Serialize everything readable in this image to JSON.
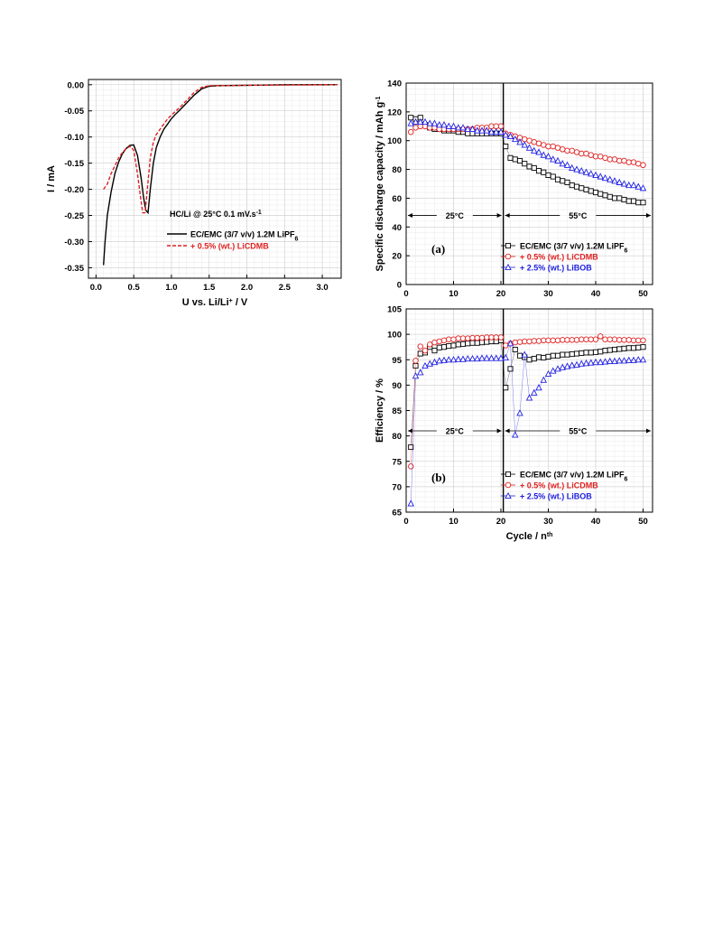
{
  "chart_data": [
    {
      "type": "line",
      "xlabel": "U vs. Li/Li",
      "xlabel_sup": "+",
      "xlabel_suffix": " / V",
      "ylabel": "I / mA",
      "xlim": [
        -0.1,
        3.25
      ],
      "ylim": [
        -0.37,
        0.01
      ],
      "xticks": [
        "0.0",
        "0.5",
        "1.0",
        "1.5",
        "2.0",
        "2.5",
        "3.0"
      ],
      "xtick_values": [
        0,
        0.5,
        1.0,
        1.5,
        2.0,
        2.5,
        3.0
      ],
      "yticks": [
        "0.00",
        "-0.05",
        "-0.10",
        "-0.15",
        "-0.20",
        "-0.25",
        "-0.30",
        "-0.35"
      ],
      "ytick_values": [
        0,
        -0.05,
        -0.1,
        -0.15,
        -0.2,
        -0.25,
        -0.3,
        -0.35
      ],
      "grid": true,
      "annotation": "HC/Li @ 25°C 0.1 mV.s",
      "annotation_sup": "-1",
      "legend_placement": "center-left",
      "series": [
        {
          "name": "EC/EMC (3/7 v/v) 1.2M LiPF",
          "name_sub": "6",
          "color": "#000000",
          "dash": "",
          "x": [
            0.1,
            0.12,
            0.15,
            0.2,
            0.25,
            0.3,
            0.35,
            0.4,
            0.45,
            0.5,
            0.55,
            0.6,
            0.63,
            0.66,
            0.69,
            0.72,
            0.76,
            0.8,
            0.85,
            0.9,
            0.95,
            1.0,
            1.05,
            1.1,
            1.2,
            1.3,
            1.4,
            1.5,
            1.6,
            2.0,
            2.5,
            3.2
          ],
          "y": [
            -0.345,
            -0.3,
            -0.25,
            -0.205,
            -0.17,
            -0.148,
            -0.132,
            -0.122,
            -0.116,
            -0.115,
            -0.135,
            -0.18,
            -0.215,
            -0.24,
            -0.245,
            -0.2,
            -0.15,
            -0.12,
            -0.1,
            -0.085,
            -0.075,
            -0.065,
            -0.057,
            -0.05,
            -0.035,
            -0.02,
            -0.008,
            -0.003,
            -0.002,
            -0.001,
            0,
            0
          ]
        },
        {
          "name": "+ 0.5% (wt.) LiCDMB",
          "color": "#e02020",
          "dash": "4,2",
          "x": [
            0.1,
            0.15,
            0.2,
            0.25,
            0.3,
            0.35,
            0.4,
            0.45,
            0.5,
            0.55,
            0.6,
            0.62,
            0.65,
            0.68,
            0.72,
            0.76,
            0.8,
            0.85,
            0.9,
            0.95,
            1.0,
            1.1,
            1.2,
            1.3,
            1.4,
            1.5,
            2.0,
            3.2
          ],
          "y": [
            -0.2,
            -0.19,
            -0.17,
            -0.155,
            -0.14,
            -0.13,
            -0.122,
            -0.118,
            -0.125,
            -0.17,
            -0.225,
            -0.245,
            -0.245,
            -0.2,
            -0.14,
            -0.11,
            -0.095,
            -0.085,
            -0.075,
            -0.065,
            -0.058,
            -0.045,
            -0.03,
            -0.015,
            -0.005,
            -0.002,
            -0.001,
            0
          ]
        }
      ]
    },
    {
      "type": "scatter",
      "panel": "(a)",
      "xlabel": "",
      "ylabel": "Specific discharge capacity / mAh g",
      "ylabel_sup": "-1",
      "xlim": [
        0,
        52
      ],
      "ylim": [
        0,
        140
      ],
      "xticks": [
        "0",
        "10",
        "20",
        "30",
        "40",
        "50"
      ],
      "xtick_values": [
        0,
        10,
        20,
        30,
        40,
        50
      ],
      "yticks": [
        "0",
        "20",
        "40",
        "60",
        "80",
        "100",
        "120",
        "140"
      ],
      "ytick_values": [
        0,
        20,
        40,
        60,
        80,
        100,
        120,
        140
      ],
      "grid": true,
      "divider_x": 20.5,
      "regions": [
        {
          "label": "25°C",
          "x_range": [
            0,
            20.5
          ],
          "y": 48
        },
        {
          "label": "55°C",
          "x_range": [
            20.5,
            52
          ],
          "y": 48
        }
      ],
      "legend_placement": "bottom-right",
      "series": [
        {
          "name": "EC/EMC (3/7 v/v) 1.2M LiPF",
          "name_sub": "6",
          "color": "#000000",
          "marker": "square",
          "x": [
            1,
            2,
            3,
            4,
            5,
            6,
            7,
            8,
            9,
            10,
            11,
            12,
            13,
            14,
            15,
            16,
            17,
            18,
            19,
            20,
            21,
            22,
            23,
            24,
            25,
            26,
            27,
            28,
            29,
            30,
            31,
            32,
            33,
            34,
            35,
            36,
            37,
            38,
            39,
            40,
            41,
            42,
            43,
            44,
            45,
            46,
            47,
            48,
            49,
            50
          ],
          "y": [
            116,
            115,
            116,
            111,
            109,
            108,
            108,
            107,
            107,
            107,
            106,
            106,
            105,
            105,
            105,
            105,
            105,
            105,
            105,
            105,
            96,
            88,
            87,
            86,
            84,
            82,
            81,
            79,
            78,
            76,
            75,
            73,
            72,
            71,
            69,
            68,
            67,
            66,
            65,
            64,
            63,
            62,
            61,
            60,
            60,
            59,
            58,
            58,
            57,
            57
          ]
        },
        {
          "name": "+ 0.5% (wt.) LiCDMB",
          "color": "#e02020",
          "marker": "circle",
          "x": [
            1,
            2,
            3,
            4,
            5,
            6,
            7,
            8,
            9,
            10,
            11,
            12,
            13,
            14,
            15,
            16,
            17,
            18,
            19,
            20,
            21,
            22,
            23,
            24,
            25,
            26,
            27,
            28,
            29,
            30,
            31,
            32,
            33,
            34,
            35,
            36,
            37,
            38,
            39,
            40,
            41,
            42,
            43,
            44,
            45,
            46,
            47,
            48,
            49,
            50
          ],
          "y": [
            106,
            109,
            110,
            110,
            109,
            109,
            108,
            108,
            108,
            108,
            108,
            108,
            108,
            108,
            109,
            109,
            109,
            110,
            110,
            110,
            105,
            104,
            103,
            102,
            101,
            100,
            99,
            98,
            97,
            96,
            96,
            95,
            94,
            93,
            93,
            92,
            91,
            91,
            90,
            89,
            89,
            88,
            87,
            87,
            86,
            86,
            85,
            85,
            84,
            83
          ]
        },
        {
          "name": "+ 2.5% (wt.) LiBOB",
          "color": "#2020e0",
          "marker": "triangle",
          "x": [
            1,
            2,
            3,
            4,
            5,
            6,
            7,
            8,
            9,
            10,
            11,
            12,
            13,
            14,
            15,
            16,
            17,
            18,
            19,
            20,
            21,
            22,
            23,
            24,
            25,
            26,
            27,
            28,
            29,
            30,
            31,
            32,
            33,
            34,
            35,
            36,
            37,
            38,
            39,
            40,
            41,
            42,
            43,
            44,
            45,
            46,
            47,
            48,
            49,
            50
          ],
          "y": [
            112,
            113,
            113,
            113,
            112,
            112,
            111,
            111,
            110,
            110,
            109,
            109,
            108,
            108,
            107,
            107,
            107,
            106,
            106,
            106,
            104,
            103,
            101,
            99,
            97,
            95,
            93,
            92,
            90,
            89,
            87,
            86,
            84,
            83,
            81,
            80,
            79,
            78,
            77,
            76,
            75,
            74,
            73,
            72,
            71,
            70,
            69,
            69,
            68,
            67
          ]
        }
      ]
    },
    {
      "type": "scatter",
      "panel": "(b)",
      "xlabel": "Cycle / n",
      "xlabel_sup": "th",
      "ylabel": "Efficiency / %",
      "xlim": [
        0,
        52
      ],
      "ylim": [
        65,
        105
      ],
      "xticks": [
        "0",
        "10",
        "20",
        "30",
        "40",
        "50"
      ],
      "xtick_values": [
        0,
        10,
        20,
        30,
        40,
        50
      ],
      "yticks": [
        "65",
        "70",
        "75",
        "80",
        "85",
        "90",
        "95",
        "100",
        "105"
      ],
      "ytick_values": [
        65,
        70,
        75,
        80,
        85,
        90,
        95,
        100,
        105
      ],
      "grid": true,
      "divider_x": 20.5,
      "regions": [
        {
          "label": "25°C",
          "x_range": [
            0,
            20.5
          ],
          "y": 81
        },
        {
          "label": "55°C",
          "x_range": [
            20.5,
            52
          ],
          "y": 81
        }
      ],
      "legend_placement": "bottom-right",
      "series": [
        {
          "name": "EC/EMC (3/7 v/v) 1.2M LiPF",
          "name_sub": "6",
          "color": "#000000",
          "marker": "square",
          "x": [
            1,
            2,
            3,
            4,
            5,
            6,
            7,
            8,
            9,
            10,
            11,
            12,
            13,
            14,
            15,
            16,
            17,
            18,
            19,
            20,
            21,
            22,
            23,
            24,
            25,
            26,
            27,
            28,
            29,
            30,
            31,
            32,
            33,
            34,
            35,
            36,
            37,
            38,
            39,
            40,
            41,
            42,
            43,
            44,
            45,
            46,
            47,
            48,
            49,
            50
          ],
          "y": [
            77.8,
            93.8,
            96.2,
            96.4,
            97.5,
            96.8,
            97.4,
            97.5,
            97.7,
            97.8,
            98,
            98.1,
            98.2,
            98.3,
            98.3,
            98.4,
            98.5,
            98.6,
            98.6,
            98.8,
            89.5,
            93.2,
            97,
            95.8,
            95.5,
            95,
            95.2,
            95.5,
            95.4,
            95.6,
            95.8,
            95.8,
            96,
            96,
            96.1,
            96.2,
            96.3,
            96.4,
            96.4,
            96.5,
            96.6,
            96.8,
            96.9,
            97,
            97.1,
            97.2,
            97.3,
            97.3,
            97.4,
            97.5
          ]
        },
        {
          "name": "+ 0.5% (wt.) LiCDMB",
          "color": "#e02020",
          "marker": "circle",
          "x": [
            1,
            2,
            3,
            4,
            5,
            6,
            7,
            8,
            9,
            10,
            11,
            12,
            13,
            14,
            15,
            16,
            17,
            18,
            19,
            20,
            21,
            22,
            23,
            24,
            25,
            26,
            27,
            28,
            29,
            30,
            31,
            32,
            33,
            34,
            35,
            36,
            37,
            38,
            39,
            40,
            41,
            42,
            43,
            44,
            45,
            46,
            47,
            48,
            49,
            50
          ],
          "y": [
            74,
            94.8,
            97.6,
            96.8,
            98,
            98.4,
            98.6,
            98.8,
            99,
            99,
            99.2,
            99.2,
            99.2,
            99.3,
            99.3,
            99.3,
            99.4,
            99.4,
            99.4,
            99.4,
            97.8,
            98.2,
            98.4,
            98.5,
            98.6,
            98.6,
            98.7,
            98.7,
            98.8,
            98.8,
            98.8,
            98.8,
            98.9,
            98.9,
            98.9,
            98.9,
            99,
            99,
            99,
            99,
            99.6,
            99,
            99,
            99,
            98.9,
            98.9,
            98.9,
            98.8,
            98.8,
            98.8
          ]
        },
        {
          "name": "+ 2.5% (wt.) LiBOB",
          "color": "#2020e0",
          "marker": "triangle",
          "x": [
            1,
            2,
            3,
            4,
            5,
            6,
            7,
            8,
            9,
            10,
            11,
            12,
            13,
            14,
            15,
            16,
            17,
            18,
            19,
            20,
            21,
            22,
            23,
            24,
            25,
            26,
            27,
            28,
            29,
            30,
            31,
            32,
            33,
            34,
            35,
            36,
            37,
            38,
            39,
            40,
            41,
            42,
            43,
            44,
            45,
            46,
            47,
            48,
            49,
            50
          ],
          "y": [
            66.7,
            91.8,
            92.5,
            93.8,
            94.2,
            94.5,
            94.8,
            94.9,
            95,
            95,
            95.1,
            95.1,
            95.2,
            95.2,
            95.2,
            95.3,
            95.3,
            95.3,
            95.3,
            95.3,
            95.4,
            98.2,
            80.2,
            84.5,
            96,
            87.5,
            88.5,
            89.5,
            91,
            92.2,
            92.8,
            93.2,
            93.5,
            93.7,
            93.9,
            94,
            94.2,
            94.3,
            94.4,
            94.5,
            94.5,
            94.6,
            94.7,
            94.7,
            94.8,
            94.8,
            94.9,
            94.9,
            95,
            95
          ]
        }
      ]
    }
  ]
}
